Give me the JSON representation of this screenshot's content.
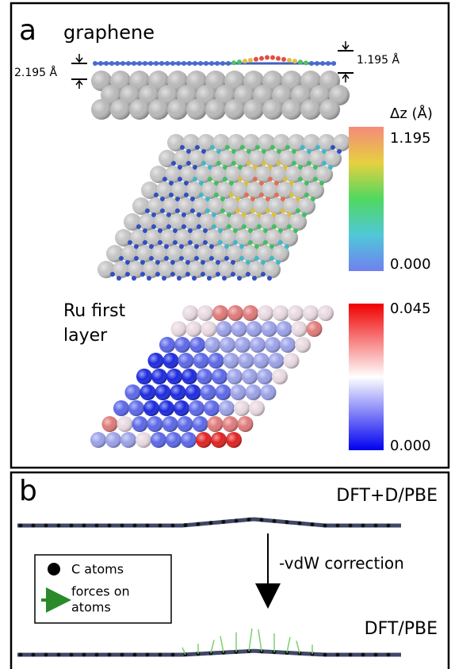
{
  "panel_a": {
    "label": "a",
    "title": "graphene",
    "gap_left": "2.195 Å",
    "gap_right": "1.195 Å",
    "colorbar_top": {
      "title": "Δz (Å)",
      "max": "1.195",
      "min": "0.000"
    },
    "layer_label": [
      "Ru first",
      "layer"
    ],
    "colorbar_bottom": {
      "max": "0.045",
      "min": "0.000"
    }
  },
  "panel_b": {
    "label": "b",
    "top_method": "DFT+D/PBE",
    "arrow_label": "-vdW correction",
    "bottom_method": "DFT/PBE",
    "legend": {
      "atoms": "C atoms",
      "forces": [
        "forces on",
        "atoms"
      ]
    }
  }
}
